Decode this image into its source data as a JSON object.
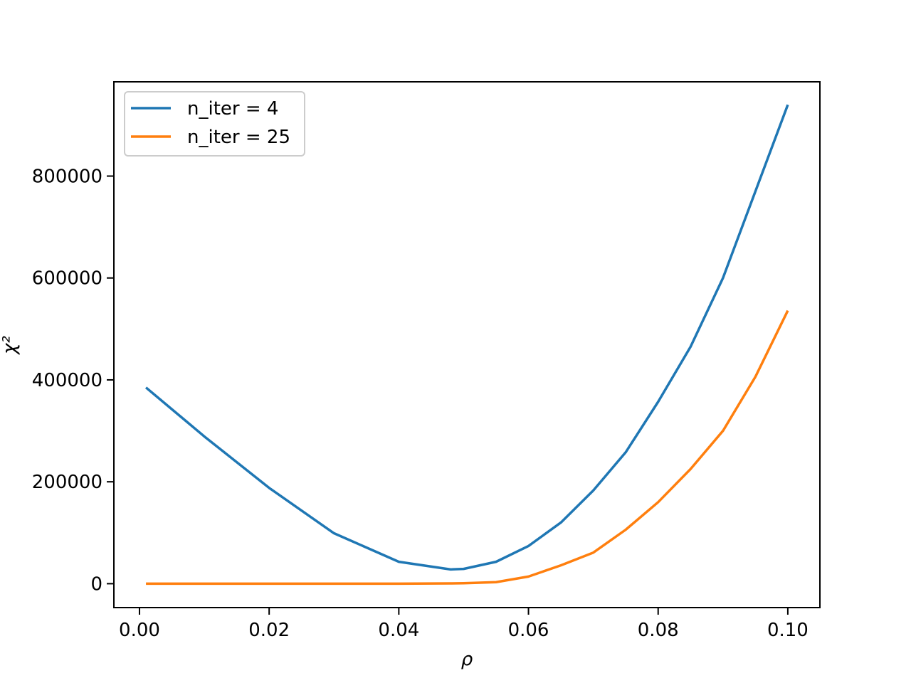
{
  "chart_data": {
    "type": "line",
    "xlabel": "ρ",
    "ylabel": "χ²",
    "x": [
      0.001,
      0.01,
      0.02,
      0.03,
      0.04,
      0.048,
      0.05,
      0.055,
      0.06,
      0.065,
      0.07,
      0.075,
      0.08,
      0.085,
      0.09,
      0.095,
      0.1
    ],
    "series": [
      {
        "name": "n_iter = 4",
        "color": "#1f77b4",
        "values": [
          385000,
          289000,
          188000,
          99000,
          43000,
          28000,
          29000,
          43000,
          74000,
          120000,
          183000,
          258000,
          357000,
          465000,
          600000,
          770000,
          940000
        ]
      },
      {
        "name": "n_iter = 25",
        "color": "#ff7f0e",
        "values": [
          0,
          0,
          0,
          0,
          0,
          500,
          1000,
          3000,
          14000,
          36000,
          61000,
          106000,
          160000,
          225000,
          300000,
          406000,
          536000
        ]
      }
    ],
    "xlim": [
      -0.00395,
      0.10495
    ],
    "ylim": [
      -46900,
      985000
    ],
    "xticks": [
      {
        "value": 0,
        "label": "0.00"
      },
      0.02,
      0.04,
      0.06,
      0.08,
      {
        "value": 0.1,
        "label": "0.10"
      }
    ],
    "yticks": [
      0,
      200000,
      400000,
      600000,
      800000
    ],
    "legend": "upper left"
  }
}
